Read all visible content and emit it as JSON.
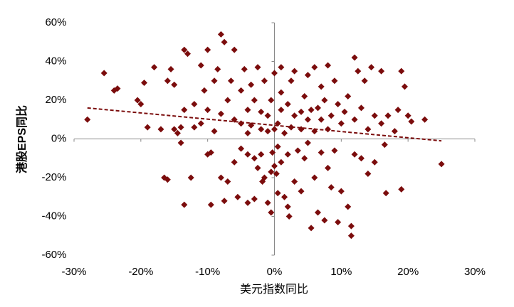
{
  "chart_data": {
    "type": "scatter",
    "xlabel": "美元指数同比",
    "ylabel": "港股EPS同比",
    "xlim": [
      -30,
      30
    ],
    "ylim": [
      -60,
      60
    ],
    "xticks": [
      {
        "value": -30,
        "label": "-30%"
      },
      {
        "value": -20,
        "label": "-20%"
      },
      {
        "value": -10,
        "label": "-10%"
      },
      {
        "value": 0,
        "label": "0%"
      },
      {
        "value": 10,
        "label": "10%"
      },
      {
        "value": 20,
        "label": "20%"
      },
      {
        "value": 30,
        "label": "30%"
      }
    ],
    "yticks": [
      {
        "value": -60,
        "label": "-60%"
      },
      {
        "value": -40,
        "label": "-40%"
      },
      {
        "value": -20,
        "label": "-20%"
      },
      {
        "value": 0,
        "label": "0%"
      },
      {
        "value": 20,
        "label": "20%"
      },
      {
        "value": 40,
        "label": "40%"
      },
      {
        "value": 60,
        "label": "60%"
      }
    ],
    "series": [
      {
        "color": "#7b0c0c",
        "x": [
          -28,
          -25.5,
          -24,
          -23.5,
          -20.5,
          -20,
          -19.5,
          -19,
          -18,
          -17,
          -16,
          -15.5,
          -15,
          -15,
          -14.5,
          -14,
          -14,
          -13.5,
          -13.5,
          -13,
          -16.5,
          -16,
          -13.5,
          -12.5,
          -12,
          -12,
          -11,
          -11,
          -10.5,
          -10,
          -10,
          -10,
          -9.5,
          -9.5,
          -9,
          -9,
          -8.5,
          -8,
          -8,
          -8,
          -7.5,
          -7.5,
          -7,
          -7,
          -6.5,
          -6,
          -6,
          -6,
          -5.5,
          -5,
          -5,
          -5,
          -4.5,
          -4,
          -4,
          -4,
          -4,
          -3.5,
          -3.5,
          -3,
          -3,
          -3,
          -2.5,
          -2.5,
          -2,
          -2,
          -2,
          -1.5,
          -1.5,
          -1,
          -1,
          -1,
          -0.5,
          -0.5,
          -0.5,
          0,
          0,
          0,
          0.5,
          0.5,
          0.5,
          1,
          1,
          1,
          1,
          1.5,
          1.5,
          2,
          2,
          2,
          2.5,
          2.5,
          3,
          3,
          3,
          3.5,
          4,
          4,
          4,
          4.5,
          4.5,
          5,
          5,
          5,
          5.5,
          5.5,
          6,
          6,
          6,
          6.5,
          6.5,
          7,
          7,
          7,
          7.5,
          7.5,
          8,
          8,
          8,
          8.5,
          8.5,
          9,
          9,
          9.5,
          9.5,
          10,
          10,
          10.5,
          11,
          11,
          11.5,
          11.5,
          12,
          12,
          12,
          12.5,
          13,
          13,
          13.5,
          14,
          14,
          14.5,
          15,
          15,
          16,
          16,
          16.5,
          16.7,
          17,
          18,
          18.5,
          19,
          19,
          19.5,
          20,
          20.5,
          22.5,
          25,
          -0.3,
          0.3,
          -1.8,
          2.2
        ],
        "values": [
          10,
          34,
          25,
          26,
          20,
          18,
          29,
          6,
          37,
          5,
          30,
          36,
          28,
          5,
          3,
          6,
          -2,
          15,
          46,
          44,
          -20,
          -21,
          -34,
          -20,
          18,
          6,
          38,
          8,
          25,
          15,
          46,
          -8,
          -34,
          -7,
          4,
          30,
          36,
          13,
          54,
          -20,
          -32,
          50,
          20,
          -22,
          30,
          10,
          46,
          -12,
          -30,
          8,
          25,
          -5,
          36,
          3,
          15,
          -8,
          -33,
          28,
          7,
          20,
          -10,
          -31,
          -15,
          37,
          5,
          14,
          -8,
          30,
          -20,
          4,
          12,
          -33,
          -38,
          20,
          -17,
          5,
          34,
          -14,
          8,
          -4,
          -28,
          15,
          37,
          24,
          -12,
          3,
          -30,
          18,
          -35,
          -8,
          30,
          6,
          12,
          -22,
          35,
          -6,
          14,
          5,
          -27,
          22,
          -10,
          10,
          33,
          -2,
          -46,
          15,
          4,
          37,
          -20,
          -38,
          16,
          10,
          27,
          -7,
          -42,
          20,
          5,
          38,
          -15,
          12,
          -25,
          30,
          -6,
          18,
          -43,
          8,
          -27,
          14,
          22,
          -35,
          -45,
          -50,
          10,
          42,
          -8,
          35,
          -10,
          16,
          30,
          -18,
          5,
          37,
          12,
          -12,
          35,
          8,
          -3,
          -28,
          12,
          4,
          15,
          -26,
          35,
          27,
          12,
          9,
          10,
          -13,
          -7,
          -18,
          -22,
          -40
        ]
      }
    ],
    "trendline": {
      "x": [
        -28,
        25
      ],
      "y": [
        16,
        -1
      ]
    }
  }
}
